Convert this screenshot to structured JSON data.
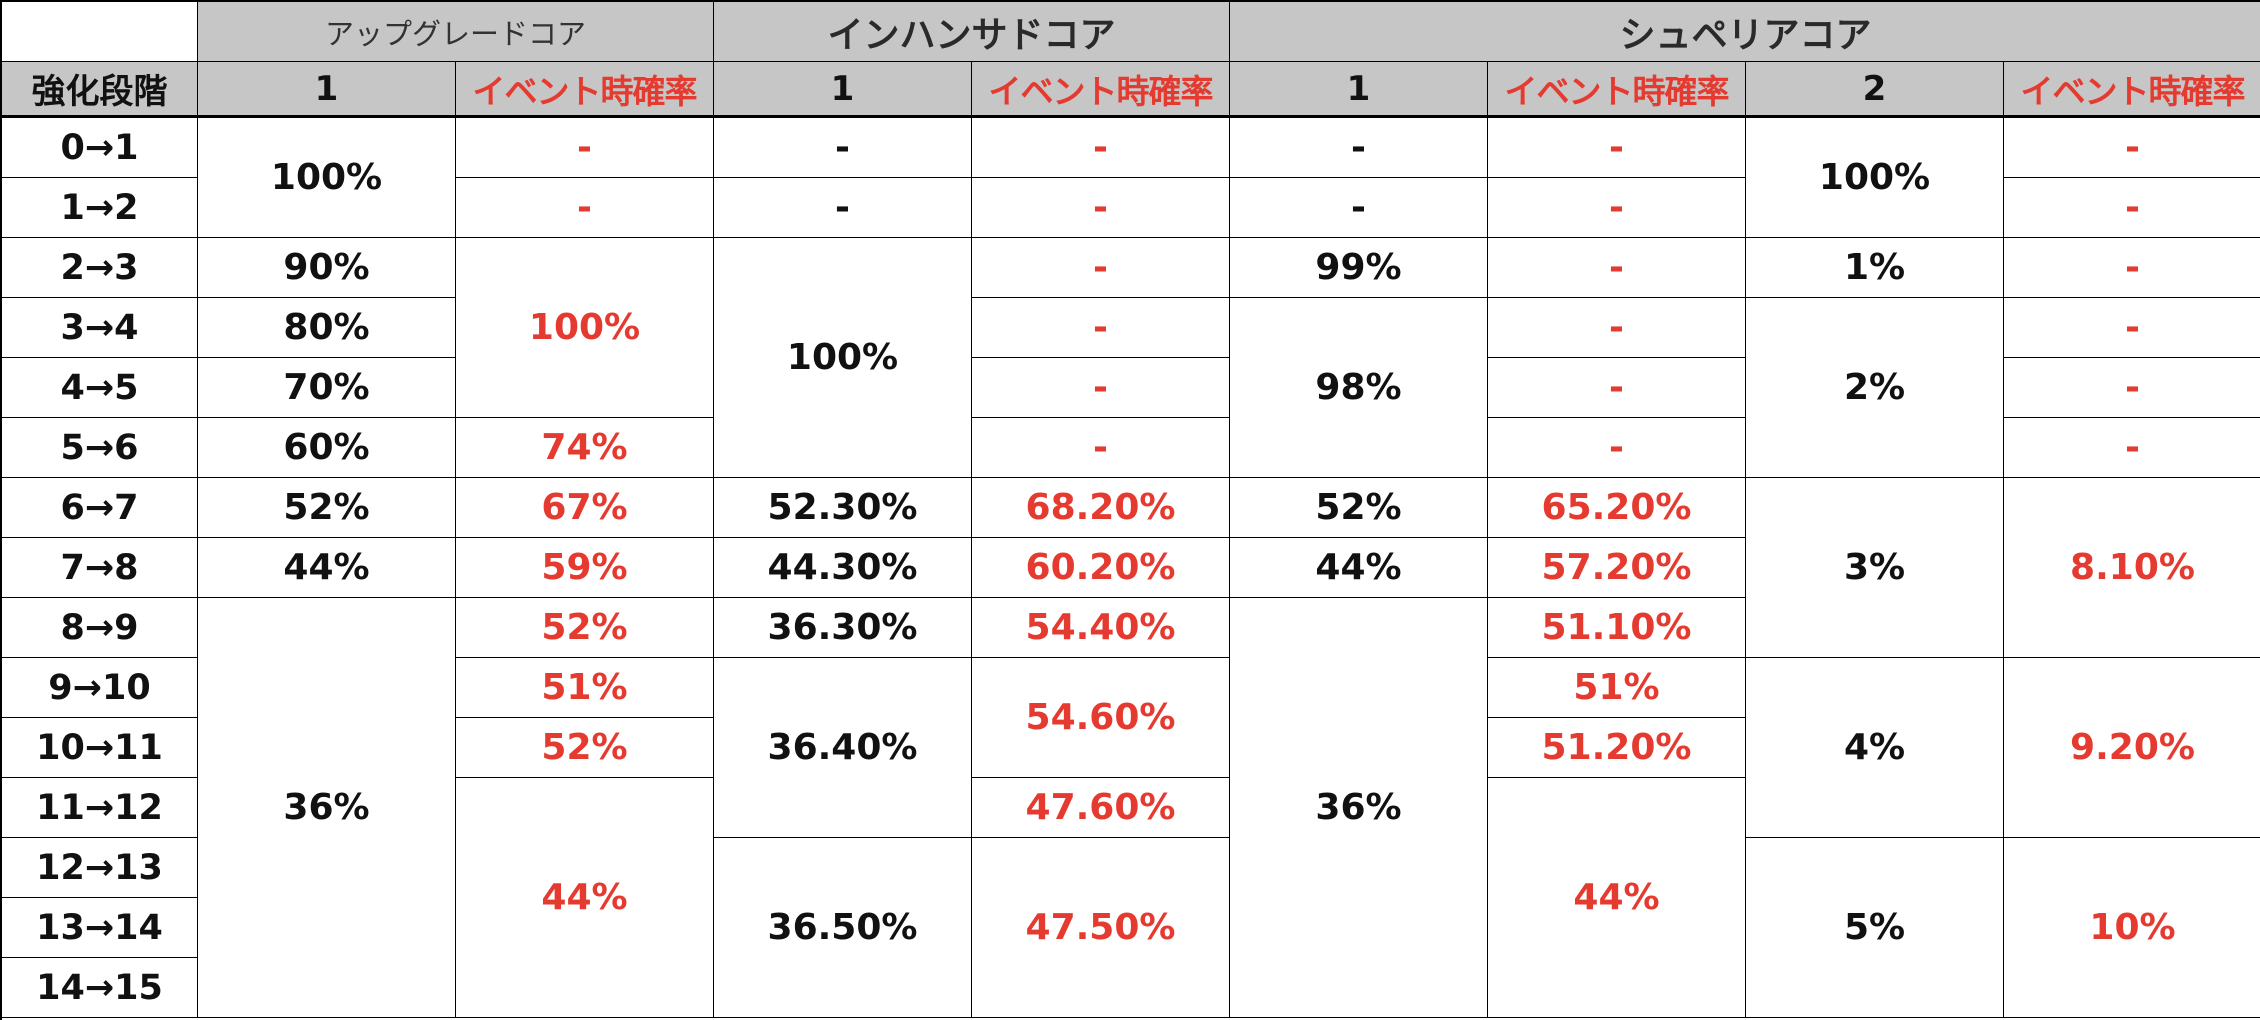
{
  "header": {
    "groups": [
      "アップグレードコア",
      "インハンサドコア",
      "シュペリアコア"
    ],
    "stage_label": "強化段階",
    "upgrade_cols": [
      "1",
      "イベント時確率"
    ],
    "enhanced_cols": [
      "1",
      "イベント時確率"
    ],
    "superior_cols": [
      "1",
      "イベント時確率",
      "2",
      "イベント時確率"
    ]
  },
  "stages": [
    "0→1",
    "1→2",
    "2→3",
    "3→4",
    "4→5",
    "5→6",
    "6→7",
    "7→8",
    "8→9",
    "9→10",
    "10→11",
    "11→12",
    "12→13",
    "13→14",
    "14→15"
  ],
  "upgrade": {
    "rate": [
      "100%",
      "90%",
      "80%",
      "70%",
      "60%",
      "52%",
      "44%",
      "36%"
    ],
    "event": [
      "-",
      "-",
      "100%",
      "74%",
      "67%",
      "59%",
      "52%",
      "51%",
      "52%",
      "44%"
    ]
  },
  "enhanced": {
    "rate": [
      "-",
      "-",
      "100%",
      "52.30%",
      "44.30%",
      "36.30%",
      "36.40%",
      "36.50%"
    ],
    "event": [
      "-",
      "-",
      "-",
      "-",
      "-",
      "-",
      "68.20%",
      "60.20%",
      "54.40%",
      "54.60%",
      "47.60%",
      "47.50%"
    ]
  },
  "superior": {
    "rate1": [
      "-",
      "-",
      "99%",
      "98%",
      "52%",
      "44%",
      "36%"
    ],
    "event1": [
      "-",
      "-",
      "-",
      "-",
      "-",
      "-",
      "65.20%",
      "57.20%",
      "51.10%",
      "51%",
      "51.20%",
      "44%"
    ],
    "rate2": [
      "100%",
      "1%",
      "2%",
      "3%",
      "4%",
      "5%"
    ],
    "event2": [
      "-",
      "-",
      "-",
      "-",
      "-",
      "-",
      "8.10%",
      "9.20%",
      "10%"
    ]
  },
  "colors": {
    "header_bg": "#c6c6c6",
    "event_text": "#e53a2f",
    "text": "#111111",
    "border": "#000000"
  }
}
